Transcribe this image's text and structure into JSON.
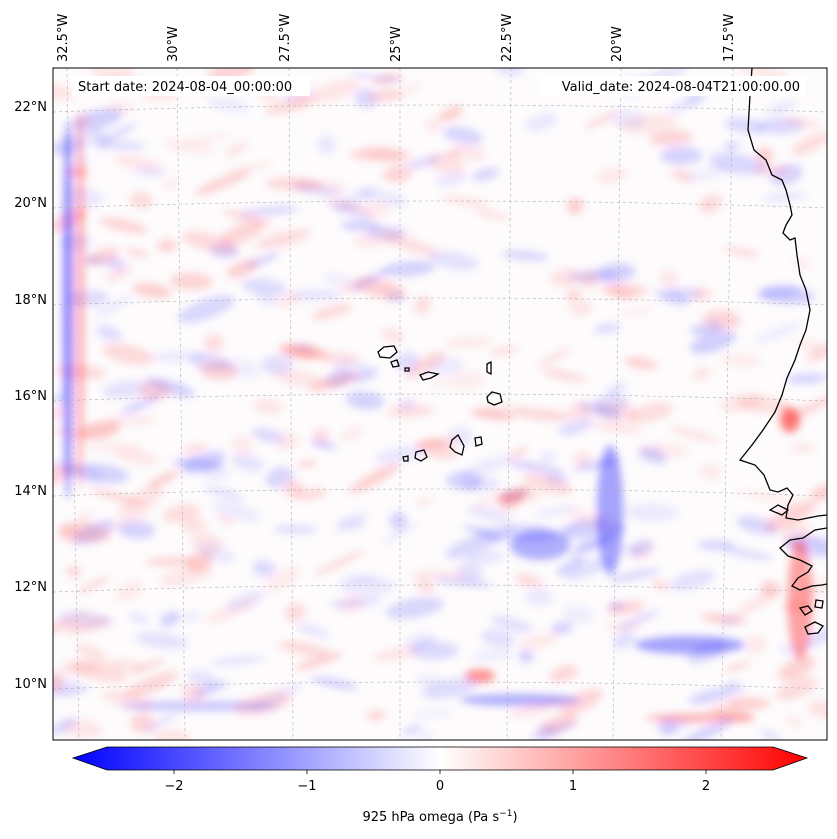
{
  "map": {
    "start_date_text": "Start date: 2024-08-04_00:00:00",
    "valid_date_text": "Valid_date: 2024-08-04T21:00:00.00",
    "field": "925 hPa omega",
    "lon_labels": [
      "32.5°W",
      "30°W",
      "27.5°W",
      "25°W",
      "22.5°W",
      "20°W",
      "17.5°W"
    ],
    "lat_labels": [
      "22°N",
      "20°N",
      "18°N",
      "16°N",
      "14°N",
      "12°N",
      "10°N"
    ],
    "extent": {
      "lon_min": -33.0,
      "lon_max": -15.5,
      "lat_min": 8.8,
      "lat_max": 22.8
    },
    "gridlines": true,
    "colormap": "bwr",
    "colors": {
      "negative": "#0000ff",
      "zero": "#ffffff",
      "positive": "#ff0000",
      "coast": "#000000",
      "grid": "#b0b0b0"
    }
  },
  "colorbar": {
    "ticks": [
      "−2",
      "−1",
      "0",
      "1",
      "2"
    ],
    "tick_values": [
      -2,
      -1,
      0,
      1,
      2
    ],
    "range": [
      -2.5,
      2.5
    ],
    "extend": "both",
    "label": "925 hPa omega (Pa s",
    "label_exponent": "−1",
    "label_close": ")"
  }
}
